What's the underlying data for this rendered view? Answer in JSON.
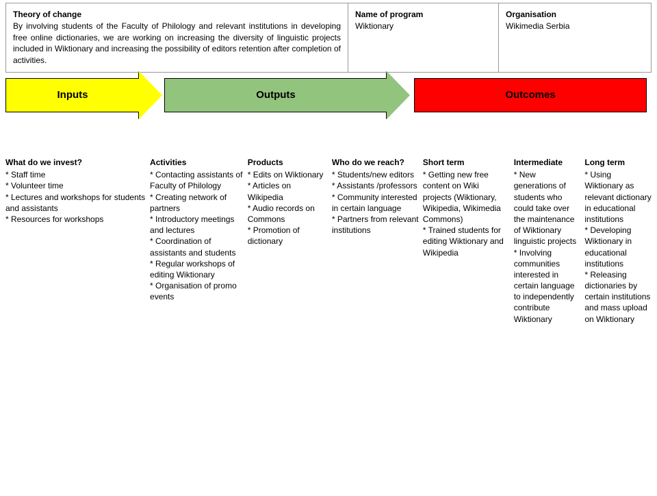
{
  "header": {
    "theory_label": "Theory of change",
    "theory_text": "By involving students of the Faculty of Philology and relevant institutions in developing free online dictionaries, we are working on increasing the diversity of linguistic projects included in Wiktionary and increasing the possibility of editors retention after completion of activities.",
    "program_label": "Name of program",
    "program_value": "Wiktionary",
    "org_label": "Organisation",
    "org_value": "Wikimedia Serbia"
  },
  "arrows": {
    "inputs": {
      "label": "Inputs",
      "bg": "#ffff00"
    },
    "outputs": {
      "label": "Outputs",
      "bg": "#93c47d"
    },
    "outcomes": {
      "label": "Outcomes",
      "bg": "#ff0000"
    }
  },
  "columns": {
    "invest": {
      "title": "What do we invest?",
      "items": [
        "* Staff time",
        "* Volunteer time",
        "* Lectures and workshops for students and assistants",
        "* Resources for workshops"
      ]
    },
    "activities": {
      "title": "Activities",
      "items": [
        "* Contacting assistants of Faculty of Philology",
        "* Creating network of partners",
        "* Introductory meetings and lectures",
        "* Coordination of assistants and students",
        "* Regular workshops of editing Wiktionary",
        "* Organisation of promo events"
      ]
    },
    "products": {
      "title": "Products",
      "items": [
        "*  Edits on Wiktionary",
        "* Articles on Wikipedia",
        "* Audio records on Commons",
        "* Promotion of dictionary"
      ]
    },
    "reach": {
      "title": "Who do we reach?",
      "items": [
        "* Students/new editors",
        "* Assistants /professors",
        "* Community interested in certain language",
        "* Partners from relevant institutions"
      ]
    },
    "short": {
      "title": "Short term",
      "items": [
        "* Getting new free content on Wiki projects (Wiktionary, Wikipedia, Wikimedia Commons)",
        "* Trained students for editing Wiktionary and Wikipedia"
      ]
    },
    "intermediate": {
      "title": "Intermediate",
      "items": [
        "* New generations of students who could take over the maintenance of Wiktionary linguistic projects",
        "* Involving communities interested in certain language to independently contribute Wiktionary"
      ]
    },
    "long": {
      "title": "Long term",
      "items": [
        "* Using Wiktionary as relevant dictionary in educational institutions",
        "* Developing Wiktionary in educational institutions",
        "* Releasing dictionaries by certain institutions and mass upload on Wiktionary"
      ]
    }
  }
}
